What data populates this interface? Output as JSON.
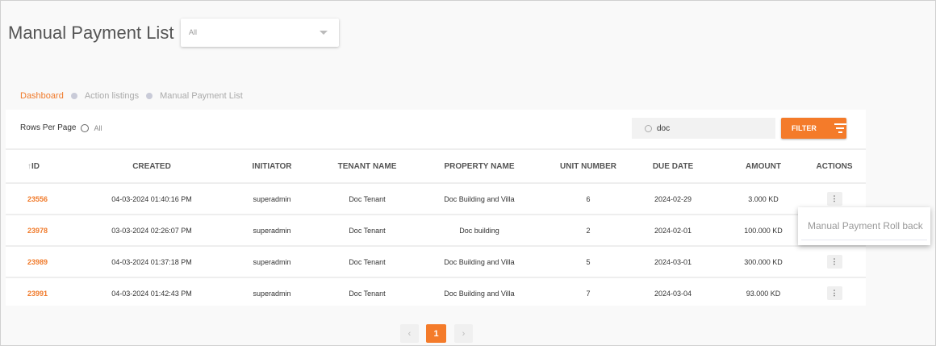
{
  "page": {
    "title": "Manual Payment List"
  },
  "dropdown": {
    "value": "All"
  },
  "breadcrumb": [
    "Dashboard",
    "Action listings",
    "Manual Payment List"
  ],
  "toolbar": {
    "rows_per_page_label": "Rows Per Page",
    "rows_option": "All",
    "search_value": "doc",
    "filter_label": "FILTER"
  },
  "table": {
    "columns": [
      "ID",
      "CREATED",
      "INITIATOR",
      "TENANT NAME",
      "PROPERTY NAME",
      "UNIT NUMBER",
      "DUE DATE",
      "AMOUNT",
      "ACTIONS"
    ],
    "rows": [
      [
        "23556",
        "04-03-2024 01:40:16 PM",
        "superadmin",
        "Doc Tenant",
        "Doc Building and Villa",
        "6",
        "2024-02-29",
        "3.000 KD"
      ],
      [
        "23978",
        "03-03-2024 02:26:07 PM",
        "superadmin",
        "Doc Tenant",
        "Doc building",
        "2",
        "2024-02-01",
        "100.000 KD"
      ],
      [
        "23989",
        "04-03-2024 01:37:18 PM",
        "superadmin",
        "Doc Tenant",
        "Doc Building and Villa",
        "5",
        "2024-03-01",
        "300.000 KD"
      ],
      [
        "23991",
        "04-03-2024 01:42:43 PM",
        "superadmin",
        "Doc Tenant",
        "Doc Building and Villa",
        "7",
        "2024-03-04",
        "93.000 KD"
      ]
    ]
  },
  "action_menu": {
    "items": [
      "Manual Payment Roll back"
    ]
  },
  "pagination": {
    "current": "1",
    "prev": "‹",
    "next": "›"
  },
  "colors": {
    "accent": "#f47b2a"
  }
}
